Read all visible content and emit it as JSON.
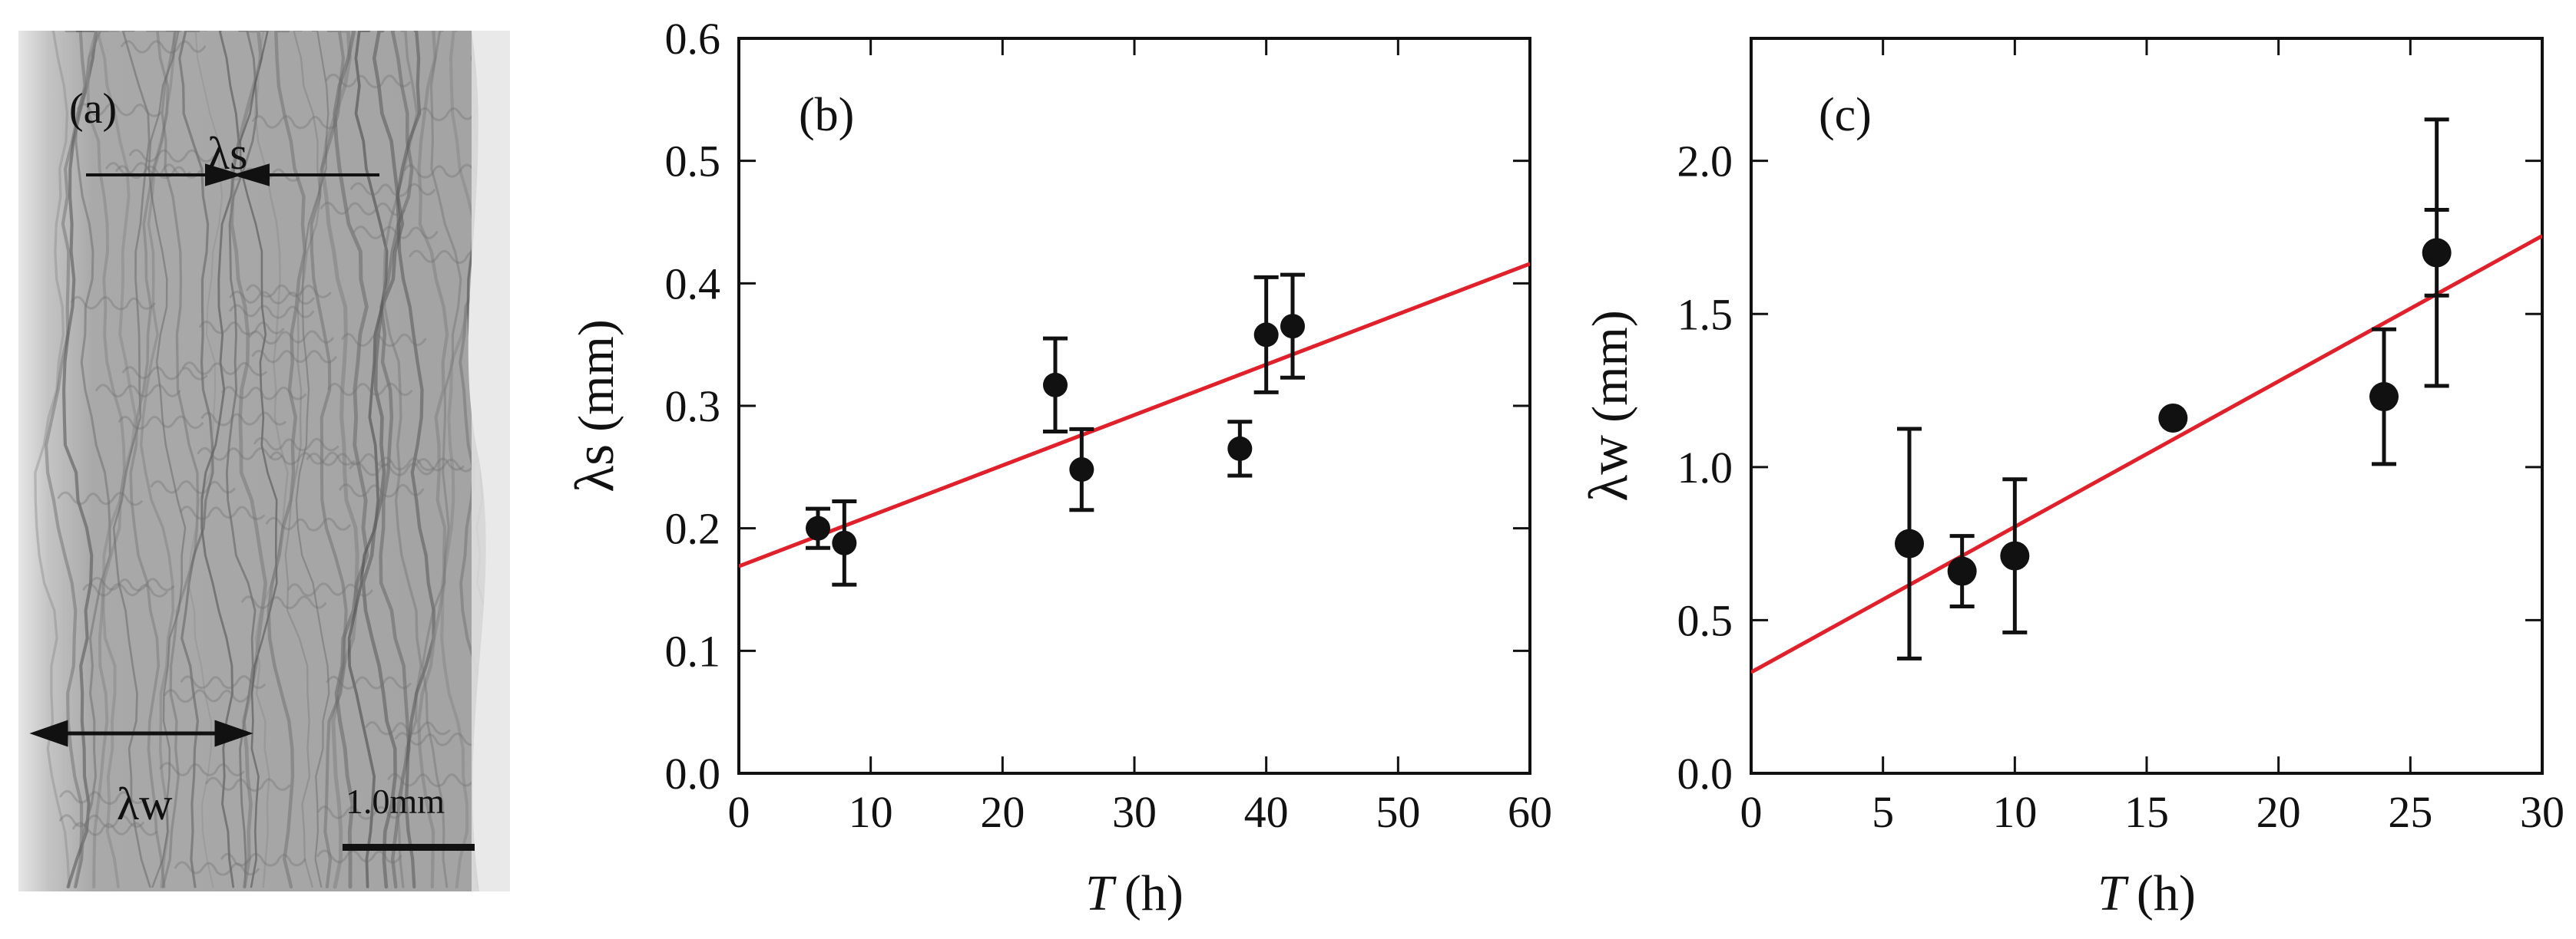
{
  "panel_a": {
    "label": "(a)",
    "lambda_s_label": "λs",
    "lambda_w_label": "λw",
    "scale_label": "1.0mm"
  },
  "chart_data": [
    {
      "type": "scatter",
      "panel_label": "(b)",
      "xlabel_italic": "T",
      "xlabel_unit": "(h)",
      "ylabel_symbol": "λs",
      "ylabel_unit": "(mm)",
      "xlim": [
        0,
        60
      ],
      "ylim": [
        0,
        0.6
      ],
      "xticks": [
        0,
        10,
        20,
        30,
        40,
        50,
        60
      ],
      "yticks": [
        0.0,
        0.1,
        0.2,
        0.3,
        0.4,
        0.5,
        0.6
      ],
      "ytick_labels": [
        "0.0",
        "0.1",
        "0.2",
        "0.3",
        "0.4",
        "0.5",
        "0.6"
      ],
      "points": [
        {
          "x": 6,
          "y": 0.2,
          "err": 0.016
        },
        {
          "x": 8,
          "y": 0.188,
          "err": 0.034
        },
        {
          "x": 24,
          "y": 0.317,
          "err": 0.038
        },
        {
          "x": 26,
          "y": 0.248,
          "err": 0.033
        },
        {
          "x": 38,
          "y": 0.265,
          "err": 0.022
        },
        {
          "x": 40,
          "y": 0.358,
          "err": 0.047
        },
        {
          "x": 42,
          "y": 0.365,
          "err": 0.042
        }
      ],
      "fit_line": {
        "x": [
          0,
          60
        ],
        "y": [
          0.169,
          0.416
        ],
        "color": "#e0202a"
      }
    },
    {
      "type": "scatter",
      "panel_label": "(c)",
      "xlabel_italic": "T",
      "xlabel_unit": "(h)",
      "ylabel_symbol": "λw",
      "ylabel_unit": "(mm)",
      "xlim": [
        0,
        30
      ],
      "ylim": [
        0,
        2.4
      ],
      "xticks": [
        0,
        5,
        10,
        15,
        20,
        25,
        30
      ],
      "yticks": [
        0.0,
        0.5,
        1.0,
        1.5,
        2.0
      ],
      "ytick_labels": [
        "0.0",
        "0.5",
        "1.0",
        "1.5",
        "2.0"
      ],
      "points": [
        {
          "x": 6,
          "y": 0.75,
          "err": 0.375
        },
        {
          "x": 8,
          "y": 0.66,
          "err": 0.115
        },
        {
          "x": 10,
          "y": 0.71,
          "err": 0.25
        },
        {
          "x": 16,
          "y": 1.16,
          "err": 0
        },
        {
          "x": 24,
          "y": 1.23,
          "err": 0.22
        },
        {
          "x": 26,
          "y": 1.7,
          "err": 0.435,
          "err_inner": 0.14
        }
      ],
      "fit_line": {
        "x": [
          0,
          30
        ],
        "y": [
          0.33,
          1.755
        ],
        "color": "#e0202a"
      }
    }
  ]
}
